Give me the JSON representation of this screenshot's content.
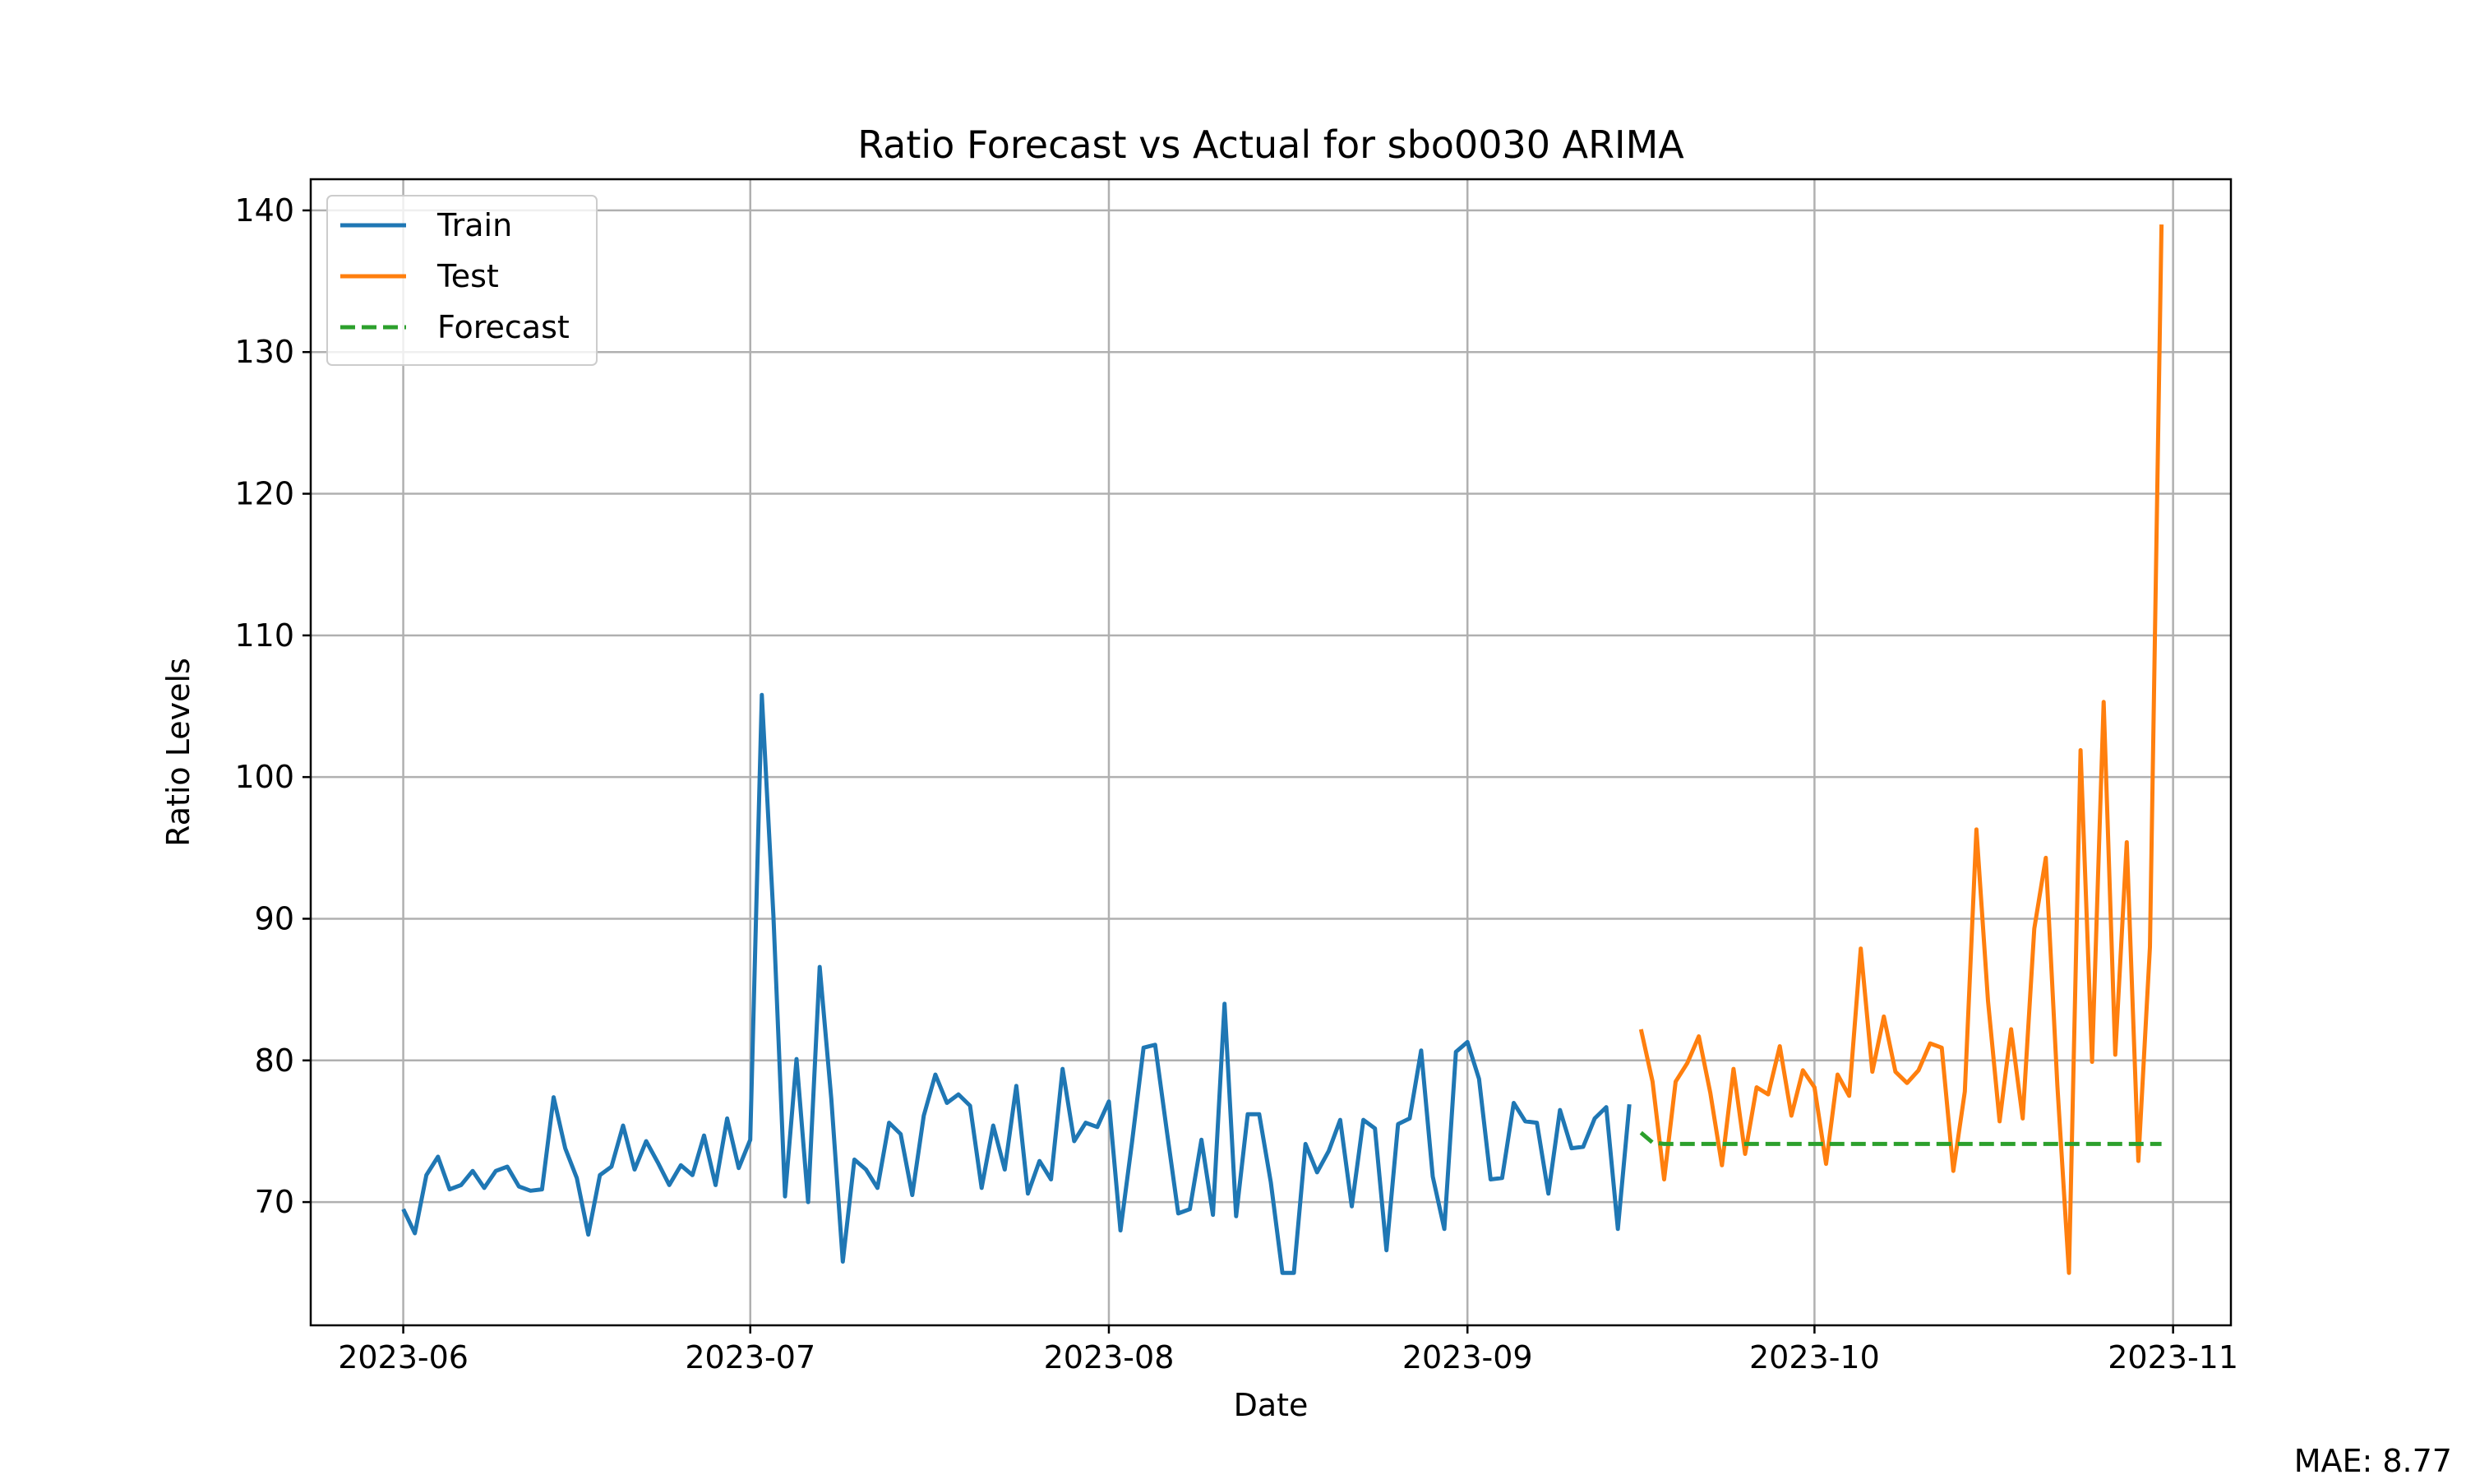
{
  "chart_data": {
    "type": "line",
    "title": "Ratio Forecast vs Actual for sbo0030 ARIMA",
    "xlabel": "Date",
    "ylabel": "Ratio Levels",
    "grid": true,
    "legend_position": "top-left",
    "note": "MAE: 8.77",
    "xlim": [
      "2023-05-24",
      "2023-11-06"
    ],
    "ylim": [
      61.3,
      142.2
    ],
    "x_ticks": [
      "2023-06-01",
      "2023-07-01",
      "2023-08-01",
      "2023-09-01",
      "2023-10-01",
      "2023-11-01"
    ],
    "x_tick_labels": [
      "2023-06",
      "2023-07",
      "2023-08",
      "2023-09",
      "2023-10",
      "2023-11"
    ],
    "y_ticks": [
      70,
      80,
      90,
      100,
      110,
      120,
      130,
      140
    ],
    "y_tick_labels": [
      "70",
      "80",
      "90",
      "100",
      "110",
      "120",
      "130",
      "140"
    ],
    "series": [
      {
        "name": "Train",
        "color": "#1f77b4",
        "style": "solid",
        "x": [
          "2023-06-01",
          "2023-06-02",
          "2023-06-03",
          "2023-06-04",
          "2023-06-05",
          "2023-06-06",
          "2023-06-07",
          "2023-06-08",
          "2023-06-09",
          "2023-06-10",
          "2023-06-11",
          "2023-06-12",
          "2023-06-13",
          "2023-06-14",
          "2023-06-15",
          "2023-06-16",
          "2023-06-17",
          "2023-06-18",
          "2023-06-19",
          "2023-06-20",
          "2023-06-21",
          "2023-06-22",
          "2023-06-23",
          "2023-06-24",
          "2023-06-25",
          "2023-06-26",
          "2023-06-27",
          "2023-06-28",
          "2023-06-29",
          "2023-06-30",
          "2023-07-01",
          "2023-07-02",
          "2023-07-03",
          "2023-07-04",
          "2023-07-05",
          "2023-07-06",
          "2023-07-07",
          "2023-07-08",
          "2023-07-09",
          "2023-07-10",
          "2023-07-11",
          "2023-07-12",
          "2023-07-13",
          "2023-07-14",
          "2023-07-15",
          "2023-07-16",
          "2023-07-17",
          "2023-07-18",
          "2023-07-19",
          "2023-07-20",
          "2023-07-21",
          "2023-07-22",
          "2023-07-23",
          "2023-07-24",
          "2023-07-25",
          "2023-07-26",
          "2023-07-27",
          "2023-07-28",
          "2023-07-29",
          "2023-07-30",
          "2023-07-31",
          "2023-08-01",
          "2023-08-02",
          "2023-08-03",
          "2023-08-04",
          "2023-08-05",
          "2023-08-06",
          "2023-08-07",
          "2023-08-08",
          "2023-08-09",
          "2023-08-10",
          "2023-08-11",
          "2023-08-12",
          "2023-08-13",
          "2023-08-14",
          "2023-08-15",
          "2023-08-16",
          "2023-08-17",
          "2023-08-18",
          "2023-08-19",
          "2023-08-20",
          "2023-08-21",
          "2023-08-22",
          "2023-08-23",
          "2023-08-24",
          "2023-08-25",
          "2023-08-26",
          "2023-08-27",
          "2023-08-28",
          "2023-08-29",
          "2023-08-30",
          "2023-08-31",
          "2023-09-01",
          "2023-09-02",
          "2023-09-03",
          "2023-09-04",
          "2023-09-05",
          "2023-09-06",
          "2023-09-07",
          "2023-09-08",
          "2023-09-09",
          "2023-09-10",
          "2023-09-11",
          "2023-09-12",
          "2023-09-13",
          "2023-09-14",
          "2023-09-15"
        ],
        "values": [
          69.5,
          67.8,
          71.9,
          73.2,
          70.9,
          71.2,
          72.2,
          71.0,
          72.2,
          72.5,
          71.1,
          70.8,
          70.9,
          77.4,
          73.8,
          71.7,
          67.7,
          71.9,
          72.5,
          75.4,
          72.3,
          74.3,
          72.8,
          71.2,
          72.6,
          71.9,
          74.7,
          71.2,
          75.9,
          72.4,
          74.4,
          105.8,
          90.2,
          70.4,
          80.1,
          70.0,
          86.6,
          77.3,
          65.8,
          73.0,
          72.3,
          71.0,
          75.6,
          74.8,
          70.5,
          76.1,
          79.0,
          77.0,
          77.6,
          76.8,
          71.0,
          75.4,
          72.3,
          78.2,
          70.6,
          72.9,
          71.6,
          79.4,
          74.3,
          75.6,
          75.3,
          77.1,
          68.0,
          74.2,
          80.9,
          81.1,
          75.1,
          69.2,
          69.5,
          74.4,
          69.1,
          84.0,
          69.0,
          76.2,
          76.2,
          71.4,
          65.0,
          65.0,
          74.1,
          72.1,
          73.6,
          75.8,
          69.7,
          75.8,
          75.2,
          66.6,
          75.5,
          75.9,
          80.7,
          71.8,
          68.1,
          80.6,
          81.3,
          78.7,
          71.6,
          71.7,
          77.0,
          75.7,
          75.6,
          70.6,
          76.5,
          73.8,
          73.9,
          75.9,
          76.7,
          68.1,
          76.9
        ]
      },
      {
        "name": "Test",
        "color": "#ff7f0e",
        "style": "solid",
        "x": [
          "2023-09-16",
          "2023-09-17",
          "2023-09-18",
          "2023-09-19",
          "2023-09-20",
          "2023-09-21",
          "2023-09-22",
          "2023-09-23",
          "2023-09-24",
          "2023-09-25",
          "2023-09-26",
          "2023-09-27",
          "2023-09-28",
          "2023-09-29",
          "2023-09-30",
          "2023-10-01",
          "2023-10-02",
          "2023-10-03",
          "2023-10-04",
          "2023-10-05",
          "2023-10-06",
          "2023-10-07",
          "2023-10-08",
          "2023-10-09",
          "2023-10-10",
          "2023-10-11",
          "2023-10-12",
          "2023-10-13",
          "2023-10-14",
          "2023-10-15",
          "2023-10-16",
          "2023-10-17",
          "2023-10-18",
          "2023-10-19",
          "2023-10-20",
          "2023-10-21",
          "2023-10-22",
          "2023-10-23",
          "2023-10-24",
          "2023-10-25",
          "2023-10-26",
          "2023-10-27",
          "2023-10-28",
          "2023-10-29",
          "2023-10-30",
          "2023-10-31"
        ],
        "values": [
          82.2,
          78.5,
          71.6,
          78.5,
          79.8,
          81.7,
          77.7,
          72.6,
          79.4,
          73.4,
          78.1,
          77.6,
          81.0,
          76.1,
          79.3,
          78.1,
          72.7,
          79.0,
          77.5,
          87.9,
          79.2,
          83.1,
          79.2,
          78.4,
          79.3,
          81.2,
          80.9,
          72.2,
          77.8,
          96.3,
          84.2,
          75.7,
          82.2,
          75.9,
          89.3,
          94.3,
          78.2,
          65.0,
          101.9,
          79.9,
          105.3,
          80.4,
          95.4,
          72.9,
          88.0,
          139.0
        ]
      },
      {
        "name": "Forecast",
        "color": "#2ca02c",
        "style": "dashed",
        "x": [
          "2023-09-16",
          "2023-09-17",
          "2023-09-18",
          "2023-10-31"
        ],
        "values": [
          74.9,
          74.2,
          74.1,
          74.1
        ]
      }
    ]
  }
}
